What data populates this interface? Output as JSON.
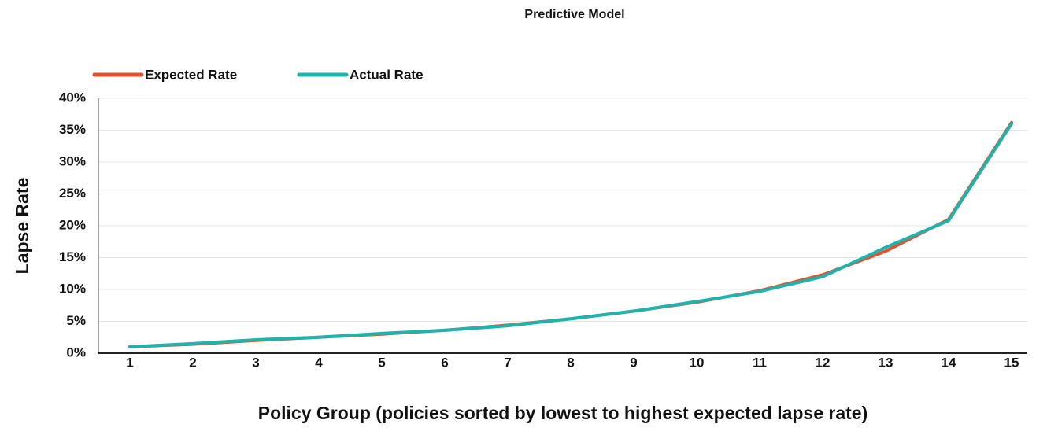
{
  "chart_data": {
    "type": "line",
    "title": "Predictive Model",
    "x_label": "Policy Group (policies sorted by lowest to highest expected lapse rate)",
    "y_label": "Lapse Rate",
    "categories": [
      "1",
      "2",
      "3",
      "4",
      "5",
      "6",
      "7",
      "8",
      "9",
      "10",
      "11",
      "12",
      "13",
      "14",
      "15"
    ],
    "series": [
      {
        "name": "Expected Rate",
        "color": "#e0532f",
        "values": [
          1.0,
          1.4,
          2.0,
          2.5,
          3.0,
          3.6,
          4.4,
          5.4,
          6.6,
          8.0,
          9.8,
          12.3,
          16.0,
          21.0,
          36.2
        ]
      },
      {
        "name": "Actual Rate",
        "color": "#1fb3ad",
        "values": [
          1.0,
          1.5,
          2.1,
          2.5,
          3.1,
          3.6,
          4.3,
          5.4,
          6.6,
          8.1,
          9.7,
          12.0,
          16.6,
          20.8,
          36.0
        ]
      }
    ],
    "ylim": [
      0,
      40
    ],
    "yticks": [
      {
        "value": 0,
        "label": "0%"
      },
      {
        "value": 5,
        "label": "5%"
      },
      {
        "value": 10,
        "label": "10%"
      },
      {
        "value": 15,
        "label": "15%"
      },
      {
        "value": 20,
        "label": "20%"
      },
      {
        "value": 25,
        "label": "25%"
      },
      {
        "value": 30,
        "label": "30%"
      },
      {
        "value": 35,
        "label": "35%"
      },
      {
        "value": 40,
        "label": "40%"
      }
    ],
    "grid": true,
    "legend": "top"
  }
}
